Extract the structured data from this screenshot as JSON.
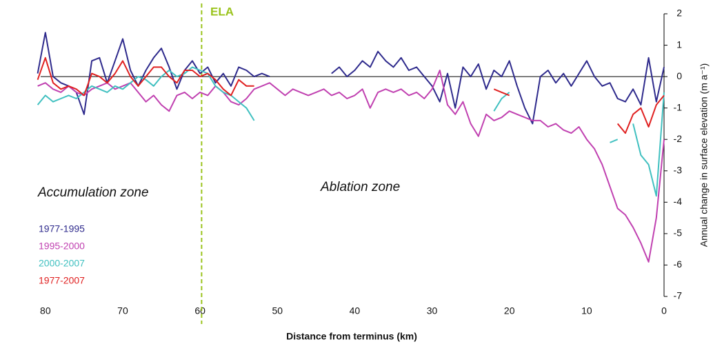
{
  "chart_data": {
    "type": "line",
    "xlabel": "Distance from terminus (km)",
    "ylabel": "Annual change in surface elevation (m a⁻¹)",
    "annotations": {
      "ela": "ELA",
      "ela_x": 59.8,
      "accumulation": "Accumulation zone",
      "ablation": "Ablation zone"
    },
    "xlim": [
      81.5,
      0
    ],
    "ylim": [
      -7,
      2
    ],
    "xticks": [
      80,
      70,
      60,
      50,
      40,
      30,
      20,
      10,
      0
    ],
    "yticks": [
      2,
      1,
      0,
      -1,
      -2,
      -3,
      -4,
      -5,
      -6,
      -7
    ],
    "legend": "lower left",
    "x": [
      81,
      80,
      79,
      78,
      77,
      76,
      75,
      74,
      73,
      72,
      71,
      70,
      69,
      68,
      67,
      66,
      65,
      64,
      63,
      62,
      61,
      60,
      59,
      58,
      57,
      56,
      55,
      54,
      53,
      52,
      51,
      50,
      49,
      48,
      47,
      46,
      45,
      44,
      43,
      42,
      41,
      40,
      39,
      38,
      37,
      36,
      35,
      34,
      33,
      32,
      31,
      30,
      29,
      28,
      27,
      26,
      25,
      24,
      23,
      22,
      21,
      20,
      19,
      18,
      17,
      16,
      15,
      14,
      13,
      12,
      11,
      10,
      9,
      8,
      7,
      6,
      5,
      4,
      3,
      2,
      1,
      0
    ],
    "series": [
      {
        "name": "1977-1995",
        "color": "#2e2a8c",
        "values": [
          0.1,
          1.4,
          0,
          -0.2,
          -0.3,
          -0.5,
          -1.2,
          0.5,
          0.6,
          -0.2,
          0.5,
          1.2,
          0.2,
          -0.3,
          0.2,
          0.6,
          0.9,
          0.3,
          -0.4,
          0.2,
          0.5,
          0.1,
          0.3,
          -0.2,
          0.1,
          -0.3,
          0.3,
          0.2,
          0,
          0.1,
          0,
          null,
          null,
          null,
          null,
          null,
          null,
          null,
          0.1,
          0.3,
          0,
          0.2,
          0.5,
          0.3,
          0.8,
          0.5,
          0.3,
          0.6,
          0.2,
          0.3,
          0,
          -0.3,
          -0.8,
          0.1,
          -1.0,
          0.3,
          0,
          0.4,
          -0.4,
          0.2,
          0,
          0.5,
          -0.3,
          -1.0,
          -1.5,
          0,
          0.2,
          -0.2,
          0.1,
          -0.3,
          0.1,
          0.5,
          0,
          -0.3,
          -0.2,
          -0.7,
          -0.8,
          -0.4,
          -0.9,
          0.6,
          -0.8,
          0.3
        ]
      },
      {
        "name": "1995-2000",
        "color": "#c040b0",
        "values": [
          -0.3,
          -0.2,
          -0.4,
          -0.5,
          -0.3,
          -0.5,
          -0.6,
          -0.4,
          -0.3,
          -0.2,
          -0.4,
          -0.3,
          -0.2,
          -0.5,
          -0.8,
          -0.6,
          -0.9,
          -1.1,
          -0.6,
          -0.5,
          -0.7,
          -0.5,
          -0.6,
          -0.3,
          -0.5,
          -0.8,
          -0.9,
          -0.7,
          -0.4,
          -0.3,
          -0.2,
          -0.4,
          -0.6,
          -0.4,
          -0.5,
          -0.6,
          -0.5,
          -0.4,
          -0.6,
          -0.5,
          -0.7,
          -0.6,
          -0.4,
          -1.0,
          -0.5,
          -0.4,
          -0.5,
          -0.4,
          -0.6,
          -0.5,
          -0.7,
          -0.4,
          0.2,
          -0.9,
          -1.2,
          -0.8,
          -1.5,
          -1.9,
          -1.2,
          -1.4,
          -1.3,
          -1.1,
          -1.2,
          -1.3,
          -1.4,
          -1.4,
          -1.6,
          -1.5,
          -1.7,
          -1.8,
          -1.6,
          -2.0,
          -2.3,
          -2.8,
          -3.5,
          -4.2,
          -4.4,
          -4.8,
          -5.3,
          -5.9,
          -4.5,
          -2.0
        ]
      },
      {
        "name": "2000-2007",
        "color": "#40c0c0",
        "values": [
          -0.9,
          -0.6,
          -0.8,
          -0.7,
          -0.6,
          -0.7,
          -0.5,
          -0.3,
          -0.4,
          -0.5,
          -0.3,
          -0.4,
          -0.2,
          0,
          -0.1,
          -0.3,
          0,
          0.2,
          0,
          0.1,
          0.3,
          0.2,
          0.1,
          -0.3,
          -0.5,
          -0.6,
          -0.8,
          -1.0,
          -1.4,
          null,
          null,
          null,
          null,
          null,
          null,
          null,
          null,
          null,
          null,
          null,
          null,
          null,
          null,
          null,
          null,
          null,
          null,
          null,
          null,
          null,
          null,
          null,
          null,
          null,
          null,
          null,
          null,
          null,
          null,
          -1.1,
          -0.7,
          -0.5,
          null,
          null,
          null,
          null,
          null,
          null,
          null,
          null,
          null,
          null,
          null,
          null,
          -2.1,
          -2.0,
          null,
          -1.5,
          -2.5,
          -2.8,
          -3.8,
          -0.5
        ]
      },
      {
        "name": "1977-2007",
        "color": "#e02020",
        "values": [
          -0.1,
          0.6,
          -0.2,
          -0.4,
          -0.3,
          -0.4,
          -0.6,
          0.1,
          0,
          -0.2,
          0.1,
          0.5,
          0,
          -0.3,
          0,
          0.3,
          0.3,
          0,
          -0.2,
          0.2,
          0.2,
          0,
          0.1,
          -0.1,
          -0.4,
          -0.6,
          -0.1,
          -0.3,
          -0.3,
          null,
          null,
          null,
          null,
          null,
          null,
          null,
          null,
          null,
          null,
          null,
          null,
          null,
          null,
          null,
          null,
          null,
          null,
          null,
          null,
          null,
          null,
          null,
          null,
          null,
          null,
          null,
          null,
          null,
          null,
          -0.4,
          -0.5,
          -0.6,
          null,
          null,
          null,
          null,
          null,
          null,
          null,
          null,
          null,
          null,
          null,
          null,
          null,
          -1.5,
          -1.8,
          -1.2,
          -1.0,
          -1.6,
          -0.9,
          -0.6
        ]
      }
    ]
  }
}
